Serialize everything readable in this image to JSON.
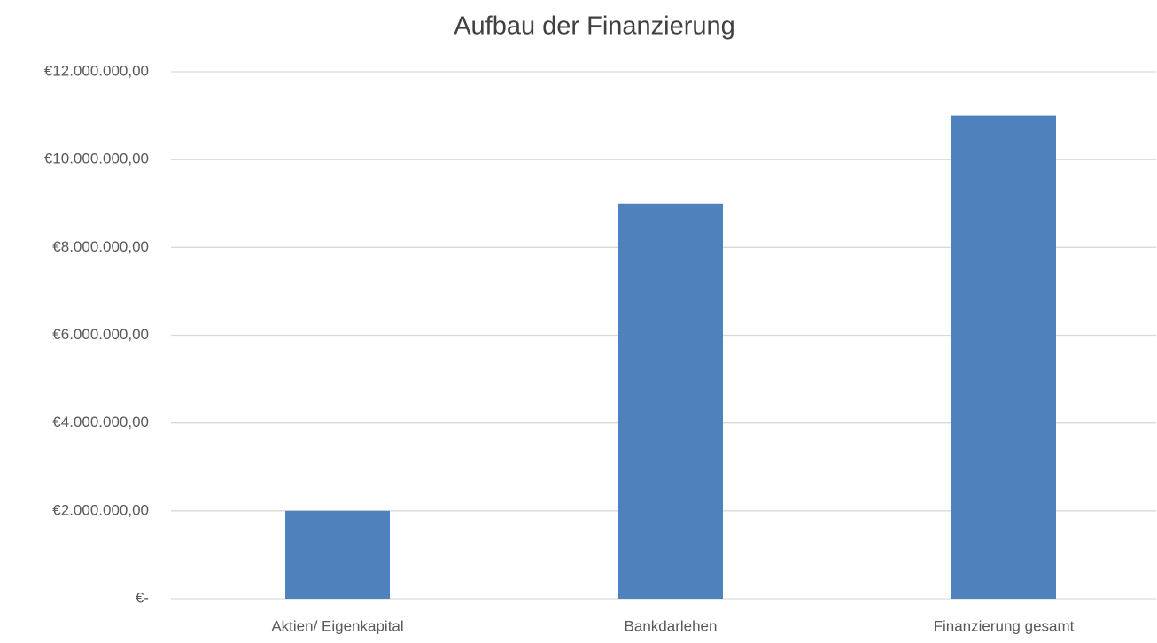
{
  "chart_data": {
    "type": "bar",
    "title": "Aufbau der Finanzierung",
    "categories": [
      "Aktien/ Eigenkapital",
      "Bankdarlehen",
      "Finanzierung gesamt"
    ],
    "values": [
      2000000,
      9000000,
      11000000
    ],
    "color": "#4f81bd",
    "ylim": [
      0,
      12000000
    ],
    "yticks": [
      {
        "value": 0,
        "label": "€-"
      },
      {
        "value": 2000000,
        "label": "€2.000.000,00"
      },
      {
        "value": 4000000,
        "label": "€4.000.000,00"
      },
      {
        "value": 6000000,
        "label": "€6.000.000,00"
      },
      {
        "value": 8000000,
        "label": "€8.000.000,00"
      },
      {
        "value": 10000000,
        "label": "€10.000.000,00"
      },
      {
        "value": 12000000,
        "label": "€12.000.000,00"
      }
    ],
    "grid": true
  }
}
